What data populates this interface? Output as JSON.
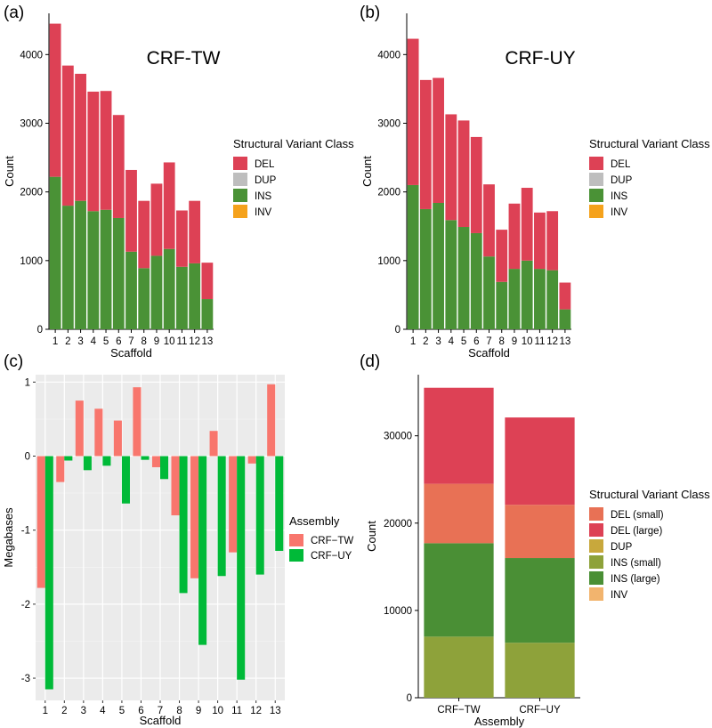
{
  "chart_data": [
    {
      "id": "a",
      "panel_label": "(a)",
      "type": "bar",
      "stacked": true,
      "inset_title": "CRF-TW",
      "xlabel": "Scaffold",
      "ylabel": "Count",
      "categories": [
        "1",
        "2",
        "3",
        "4",
        "5",
        "6",
        "7",
        "8",
        "9",
        "10",
        "11",
        "12",
        "13"
      ],
      "ylim": [
        0,
        4600
      ],
      "yticks": [
        0,
        1000,
        2000,
        3000,
        4000
      ],
      "series": [
        {
          "name": "INS",
          "color": "#4a9236",
          "values": [
            2220,
            1800,
            1870,
            1720,
            1740,
            1620,
            1130,
            890,
            1070,
            1170,
            910,
            960,
            440
          ]
        },
        {
          "name": "DEL",
          "color": "#dd4155",
          "values": [
            2230,
            2040,
            1850,
            1740,
            1730,
            1500,
            1190,
            980,
            1050,
            1260,
            820,
            910,
            530
          ]
        }
      ],
      "legend": {
        "title": "Structural Variant Class",
        "placement": "right",
        "entries": [
          {
            "label": "DEL",
            "color": "#dd4155"
          },
          {
            "label": "DUP",
            "color": "#bebebe"
          },
          {
            "label": "INS",
            "color": "#4a9236"
          },
          {
            "label": "INV",
            "color": "#f5a21c"
          }
        ]
      }
    },
    {
      "id": "b",
      "panel_label": "(b)",
      "type": "bar",
      "stacked": true,
      "inset_title": "CRF-UY",
      "xlabel": "Scaffold",
      "ylabel": "Count",
      "categories": [
        "1",
        "2",
        "3",
        "4",
        "5",
        "6",
        "7",
        "8",
        "9",
        "10",
        "11",
        "12",
        "13"
      ],
      "ylim": [
        0,
        4600
      ],
      "yticks": [
        0,
        1000,
        2000,
        3000,
        4000
      ],
      "series": [
        {
          "name": "INS",
          "color": "#4a9236",
          "values": [
            2100,
            1750,
            1840,
            1590,
            1490,
            1400,
            1060,
            690,
            880,
            1000,
            880,
            860,
            290
          ]
        },
        {
          "name": "DEL",
          "color": "#dd4155",
          "values": [
            2130,
            1880,
            1820,
            1540,
            1550,
            1400,
            1050,
            760,
            950,
            1060,
            820,
            860,
            390
          ]
        }
      ],
      "legend": {
        "title": "Structural Variant Class",
        "placement": "right",
        "entries": [
          {
            "label": "DEL",
            "color": "#dd4155"
          },
          {
            "label": "DUP",
            "color": "#bebebe"
          },
          {
            "label": "INS",
            "color": "#4a9236"
          },
          {
            "label": "INV",
            "color": "#f5a21c"
          }
        ]
      }
    },
    {
      "id": "c",
      "panel_label": "(c)",
      "type": "bar",
      "grouped": true,
      "xlabel": "Scaffold",
      "ylabel": "Megabases",
      "categories": [
        "1",
        "2",
        "3",
        "4",
        "5",
        "6",
        "7",
        "8",
        "9",
        "10",
        "11",
        "12",
        "13"
      ],
      "ylim": [
        -3.3,
        1.1
      ],
      "yticks": [
        1,
        0,
        -1,
        -2,
        -3
      ],
      "series": [
        {
          "name": "CRF−TW",
          "color": "#f8766d",
          "values": [
            -1.78,
            -0.35,
            0.75,
            0.64,
            0.48,
            0.93,
            -0.15,
            -0.8,
            -1.65,
            0.34,
            -1.3,
            -0.1,
            0.97
          ]
        },
        {
          "name": "CRF−UY",
          "color": "#00ba38",
          "values": [
            -3.15,
            -0.06,
            -0.19,
            -0.13,
            -0.64,
            -0.05,
            -0.31,
            -1.85,
            -2.55,
            -1.62,
            -3.02,
            -1.6,
            -1.28
          ]
        }
      ],
      "legend": {
        "title": "Assembly",
        "placement": "right",
        "entries": [
          {
            "label": "CRF−TW",
            "color": "#f8766d"
          },
          {
            "label": "CRF−UY",
            "color": "#00ba38"
          }
        ]
      }
    },
    {
      "id": "d",
      "panel_label": "(d)",
      "type": "bar",
      "stacked": true,
      "xlabel": "Assembly",
      "ylabel": "Count",
      "categories": [
        "CRF−TW",
        "CRF−UY"
      ],
      "ylim": [
        0,
        37000
      ],
      "yticks": [
        0,
        10000,
        20000,
        30000
      ],
      "series": [
        {
          "name": "INS (small)",
          "color": "#8ea23a",
          "values": [
            7000,
            6300
          ]
        },
        {
          "name": "INS (large)",
          "color": "#4a8f35",
          "values": [
            10700,
            9700
          ]
        },
        {
          "name": "DEL (small)",
          "color": "#e87155",
          "values": [
            6800,
            6100
          ]
        },
        {
          "name": "DEL (large)",
          "color": "#dd4155",
          "values": [
            11000,
            10000
          ]
        }
      ],
      "legend": {
        "title": "Structural Variant Class",
        "placement": "right",
        "entries": [
          {
            "label": "DEL (small)",
            "color": "#e87155"
          },
          {
            "label": "DEL (large)",
            "color": "#dd4155"
          },
          {
            "label": "DUP",
            "color": "#c8a83c"
          },
          {
            "label": "INS (small)",
            "color": "#8ea23a"
          },
          {
            "label": "INS (large)",
            "color": "#4a8f35"
          },
          {
            "label": "INV",
            "color": "#f2b46e"
          }
        ]
      }
    }
  ]
}
